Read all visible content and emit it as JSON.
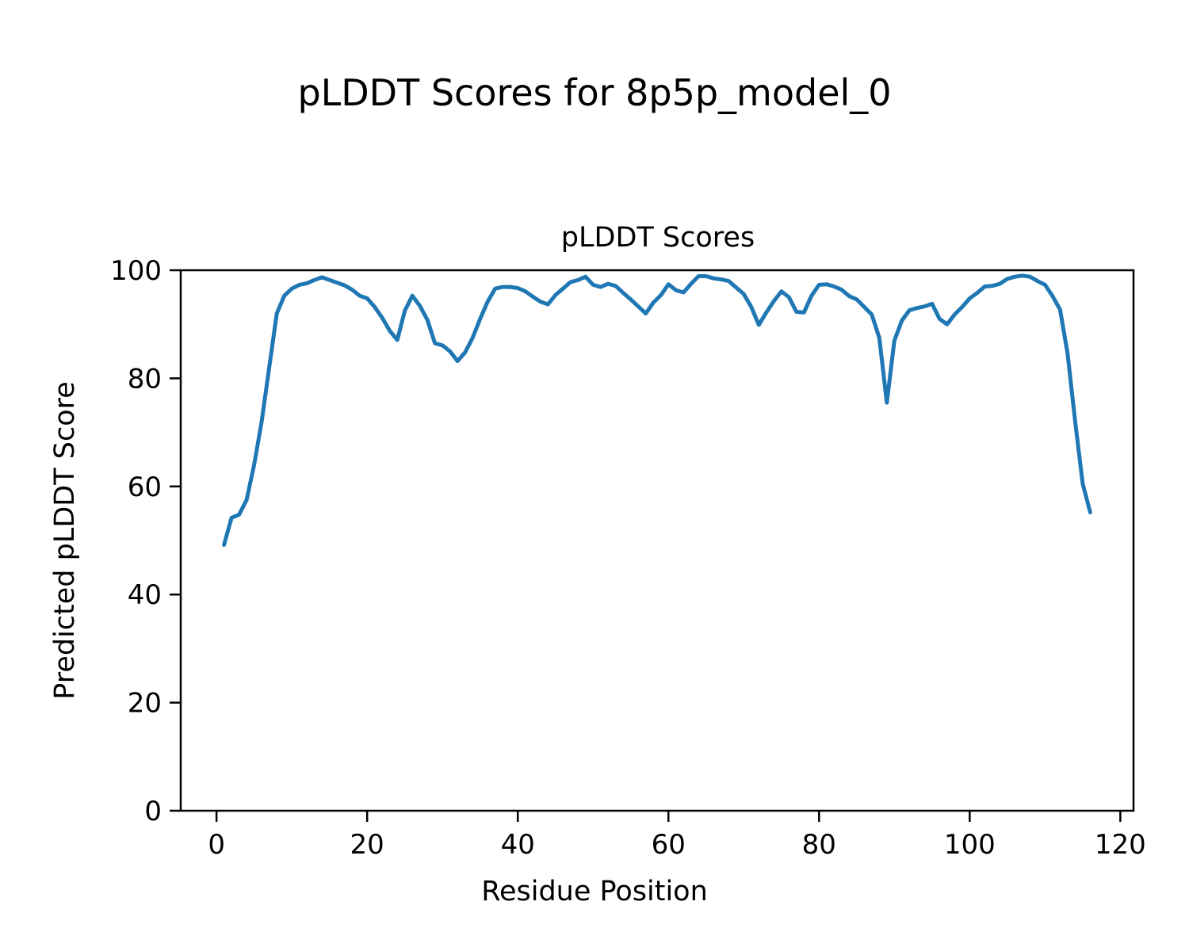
{
  "figure": {
    "suptitle": "pLDDT Scores for 8p5p_model_0"
  },
  "chart_data": {
    "type": "line",
    "title": "pLDDT Scores",
    "xlabel": "Residue Position",
    "ylabel": "Predicted pLDDT Score",
    "legend": "none",
    "grid": false,
    "line_color": "#1f77b4",
    "axis_color": "#000000",
    "xlim": [
      -4.75,
      121.75
    ],
    "ylim": [
      0,
      100
    ],
    "xticks": [
      0,
      20,
      40,
      60,
      80,
      100,
      120
    ],
    "yticks": [
      0,
      20,
      40,
      60,
      80,
      100
    ],
    "x": [
      1,
      2,
      3,
      4,
      5,
      6,
      7,
      8,
      9,
      10,
      11,
      12,
      13,
      14,
      15,
      16,
      17,
      18,
      19,
      20,
      21,
      22,
      23,
      24,
      25,
      26,
      27,
      28,
      29,
      30,
      31,
      32,
      33,
      34,
      35,
      36,
      37,
      38,
      39,
      40,
      41,
      42,
      43,
      44,
      45,
      46,
      47,
      48,
      49,
      50,
      51,
      52,
      53,
      54,
      55,
      56,
      57,
      58,
      59,
      60,
      61,
      62,
      63,
      64,
      65,
      66,
      67,
      68,
      69,
      70,
      71,
      72,
      73,
      74,
      75,
      76,
      77,
      78,
      79,
      80,
      81,
      82,
      83,
      84,
      85,
      86,
      87,
      88,
      89,
      90,
      91,
      92,
      93,
      94,
      95,
      96,
      97,
      98,
      99,
      100,
      101,
      102,
      103,
      104,
      105,
      106,
      107,
      108,
      109,
      110,
      111,
      112,
      113,
      114,
      115,
      116
    ],
    "values": [
      49.2,
      54.2,
      54.8,
      57.5,
      64.0,
      72.0,
      82.0,
      92.0,
      95.3,
      96.6,
      97.3,
      97.6,
      98.2,
      98.7,
      98.2,
      97.7,
      97.2,
      96.4,
      95.3,
      94.8,
      93.2,
      91.2,
      88.8,
      87.1,
      92.5,
      95.3,
      93.4,
      90.8,
      86.5,
      86.1,
      85.0,
      83.2,
      84.8,
      87.5,
      91.0,
      94.2,
      96.6,
      96.9,
      96.9,
      96.7,
      96.1,
      95.1,
      94.2,
      93.7,
      95.4,
      96.6,
      97.8,
      98.2,
      98.8,
      97.3,
      96.9,
      97.5,
      97.1,
      95.8,
      94.6,
      93.3,
      92.0,
      94.0,
      95.4,
      97.4,
      96.3,
      95.9,
      97.5,
      98.9,
      98.9,
      98.5,
      98.3,
      98.0,
      96.8,
      95.6,
      93.2,
      89.9,
      92.2,
      94.3,
      96.1,
      95.0,
      92.3,
      92.2,
      95.3,
      97.3,
      97.4,
      97.0,
      96.4,
      95.2,
      94.6,
      93.2,
      91.8,
      87.5,
      75.5,
      87.0,
      90.7,
      92.6,
      93.0,
      93.3,
      93.8,
      91.0,
      90.0,
      91.8,
      93.2,
      94.8,
      95.8,
      97.0,
      97.1,
      97.5,
      98.4,
      98.8,
      99.0,
      98.8,
      98.0,
      97.3,
      95.2,
      92.7,
      84.5,
      72.0,
      60.5,
      55.2
    ]
  }
}
